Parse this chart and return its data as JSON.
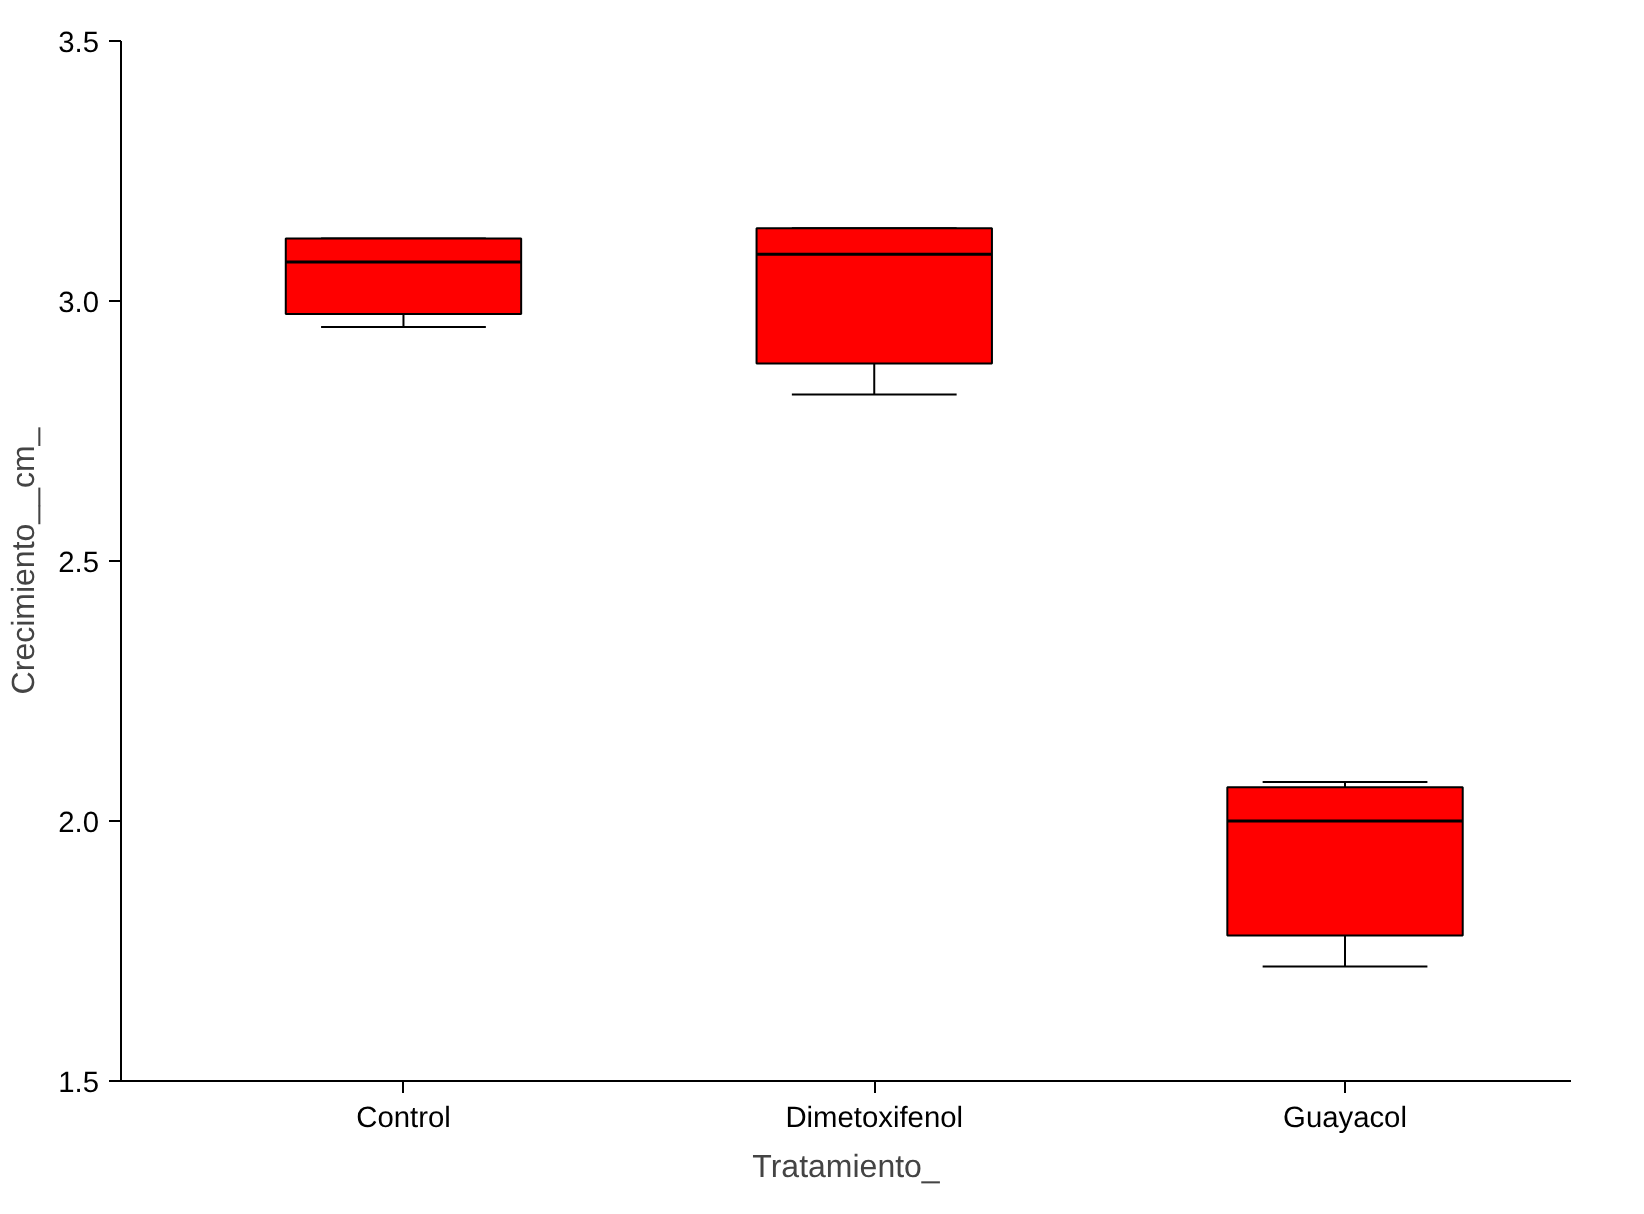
{
  "chart_data": {
    "type": "box",
    "xlabel": "Tratamiento_",
    "ylabel": "Crecimiento__cm_",
    "categories": [
      "Control",
      "Dimetoxifenol",
      "Guayacol"
    ],
    "color": "#ff0000",
    "boxes": [
      {
        "low": 2.95,
        "q1": 2.975,
        "median": 3.075,
        "q3": 3.12,
        "high": 3.12
      },
      {
        "low": 2.82,
        "q1": 2.88,
        "median": 3.09,
        "q3": 3.14,
        "high": 3.14
      },
      {
        "low": 1.72,
        "q1": 1.78,
        "median": 2.0,
        "q3": 2.065,
        "high": 2.075
      }
    ],
    "ylim": [
      1.5,
      3.5
    ],
    "yticks": [
      {
        "value": 1.5,
        "label": "1.5"
      },
      {
        "value": 2.0,
        "label": "2.0"
      },
      {
        "value": 2.5,
        "label": "2.5"
      },
      {
        "value": 3.0,
        "label": "3.0"
      },
      {
        "value": 3.5,
        "label": "3.5"
      }
    ],
    "grid": false
  }
}
